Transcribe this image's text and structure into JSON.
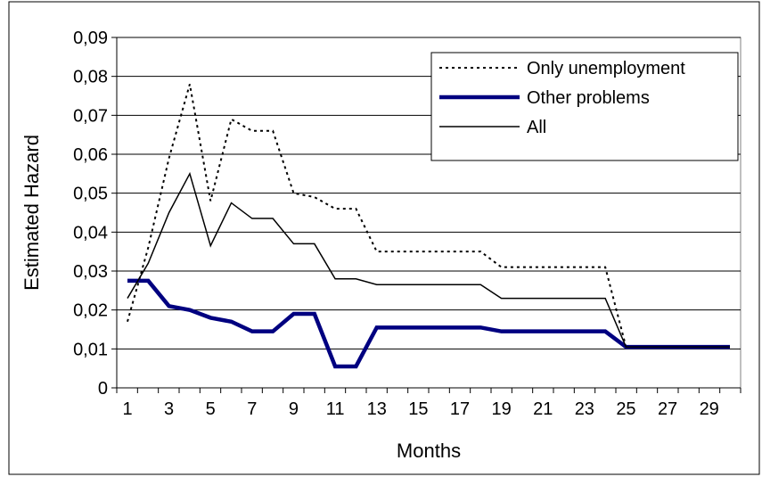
{
  "chart_data": {
    "type": "line",
    "xlabel": "Months",
    "ylabel": "Estimated Hazard",
    "ylim": [
      0,
      0.09
    ],
    "xlim": [
      1,
      30
    ],
    "x_tick_labels": [
      "1",
      "3",
      "5",
      "7",
      "9",
      "11",
      "13",
      "15",
      "17",
      "19",
      "21",
      "23",
      "25",
      "27",
      "29"
    ],
    "y_tick_labels": [
      "0",
      "0,01",
      "0,02",
      "0,03",
      "0,04",
      "0,05",
      "0,06",
      "0,07",
      "0,08",
      "0,09"
    ],
    "grid": true,
    "legend_position": "top-right",
    "x": [
      1,
      2,
      3,
      4,
      5,
      6,
      7,
      8,
      9,
      10,
      11,
      12,
      13,
      14,
      15,
      16,
      17,
      18,
      19,
      20,
      21,
      22,
      23,
      24,
      25,
      26,
      27,
      28,
      29,
      30
    ],
    "series": [
      {
        "name": "Only unemployment",
        "style": "dotted",
        "color": "#000000",
        "values": [
          0.017,
          0.036,
          0.059,
          0.078,
          0.048,
          0.069,
          0.066,
          0.066,
          0.05,
          0.049,
          0.046,
          0.046,
          0.035,
          0.035,
          0.035,
          0.035,
          0.035,
          0.035,
          0.031,
          0.031,
          0.031,
          0.031,
          0.031,
          0.031,
          0.0105,
          0.0105,
          0.0105,
          0.0105,
          0.0105,
          0.0105
        ]
      },
      {
        "name": "Other problems",
        "style": "thick",
        "color": "#000080",
        "values": [
          0.0275,
          0.0275,
          0.021,
          0.02,
          0.018,
          0.017,
          0.0145,
          0.0145,
          0.019,
          0.019,
          0.0055,
          0.0055,
          0.0155,
          0.0155,
          0.0155,
          0.0155,
          0.0155,
          0.0155,
          0.0145,
          0.0145,
          0.0145,
          0.0145,
          0.0145,
          0.0145,
          0.0105,
          0.0105,
          0.0105,
          0.0105,
          0.0105,
          0.0105
        ]
      },
      {
        "name": "All",
        "style": "thin",
        "color": "#000000",
        "values": [
          0.023,
          0.032,
          0.045,
          0.055,
          0.0365,
          0.0475,
          0.0435,
          0.0435,
          0.037,
          0.037,
          0.028,
          0.028,
          0.0265,
          0.0265,
          0.0265,
          0.0265,
          0.0265,
          0.0265,
          0.023,
          0.023,
          0.023,
          0.023,
          0.023,
          0.023,
          0.0105,
          0.0105,
          0.0105,
          0.0105,
          0.0105,
          0.0105
        ]
      }
    ]
  }
}
